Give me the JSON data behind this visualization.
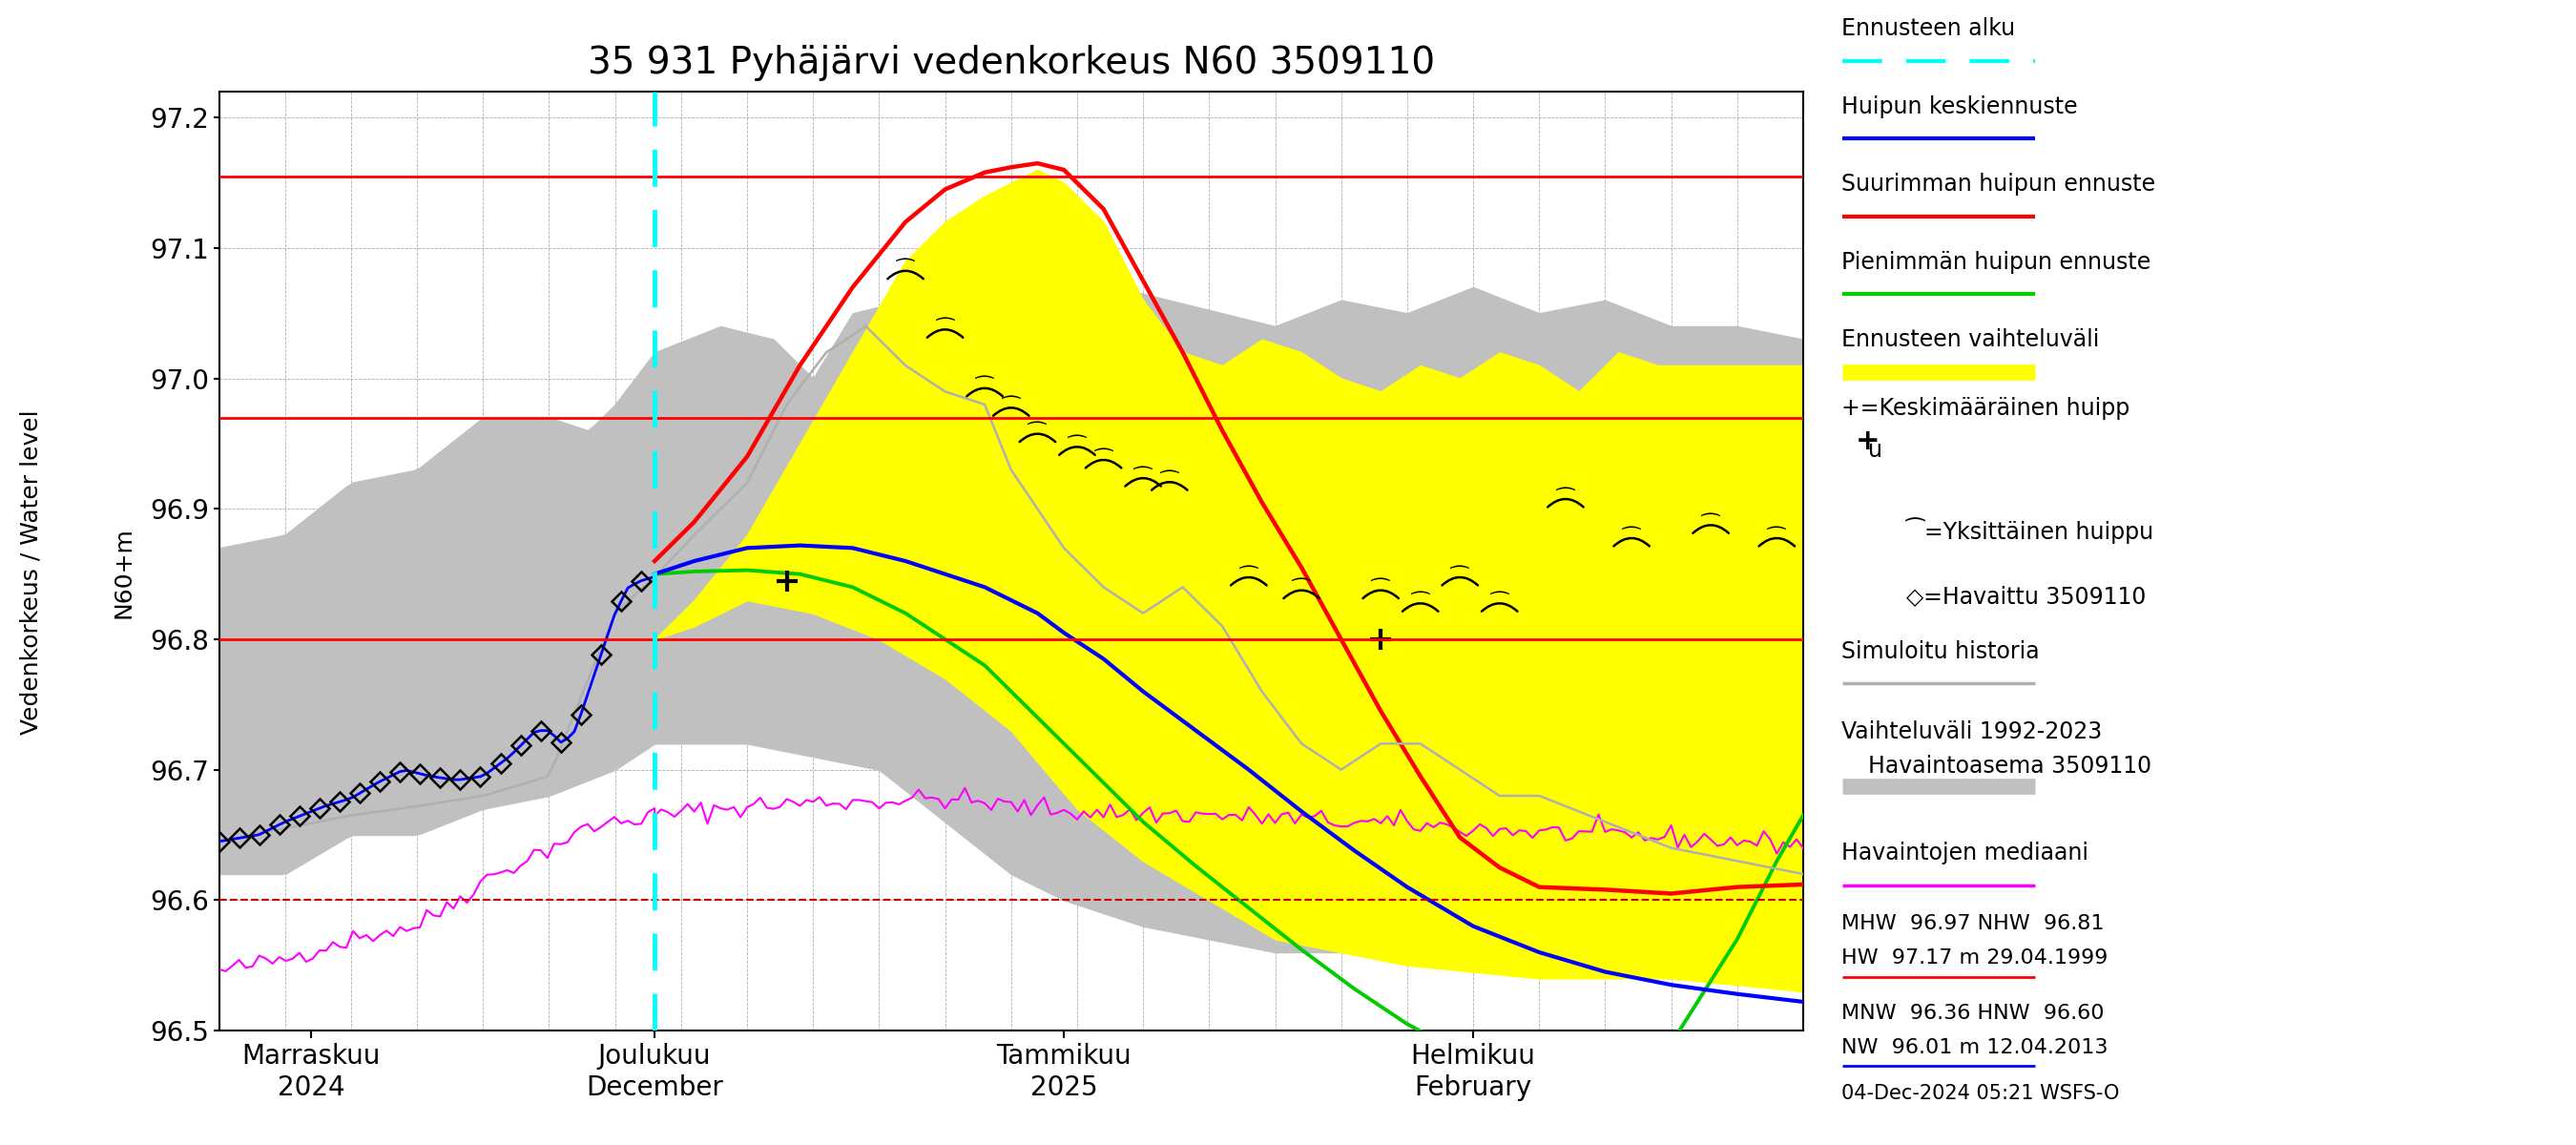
{
  "title": "35 931 Pyhäjärvi vedenkorkeus N60 3509110",
  "ylabel_left": "Vedenkorkeus / Water level",
  "ylabel_right": "N60+m",
  "ylim": [
    96.5,
    97.22
  ],
  "yticks": [
    96.5,
    96.6,
    96.7,
    96.8,
    96.9,
    97.0,
    97.1,
    97.2
  ],
  "hlines_red_solid": [
    97.155,
    96.97,
    96.8
  ],
  "hlines_red_dashed": [
    96.6,
    96.36
  ],
  "cyan_vline_x": 33,
  "date_labels": [
    {
      "label": "Marraskuu\n2024",
      "x": 7
    },
    {
      "label": "Joulukuu\nDecember",
      "x": 33
    },
    {
      "label": "Tammikuu\n2025",
      "x": 64
    },
    {
      "label": "Helmikuu\nFebruary",
      "x": 95
    }
  ],
  "footer_text": "04-Dec-2024 05:21 WSFS-O",
  "background_color": "#ffffff",
  "gray_band_color": "#c0c0c0",
  "yellow_band_color": "#ffff00",
  "obs_color": "#0000ff",
  "red_line_color": "#ff0000",
  "green_line_color": "#00cc00",
  "magenta_color": "#ff00ff",
  "sim_color": "#b0b0b0"
}
